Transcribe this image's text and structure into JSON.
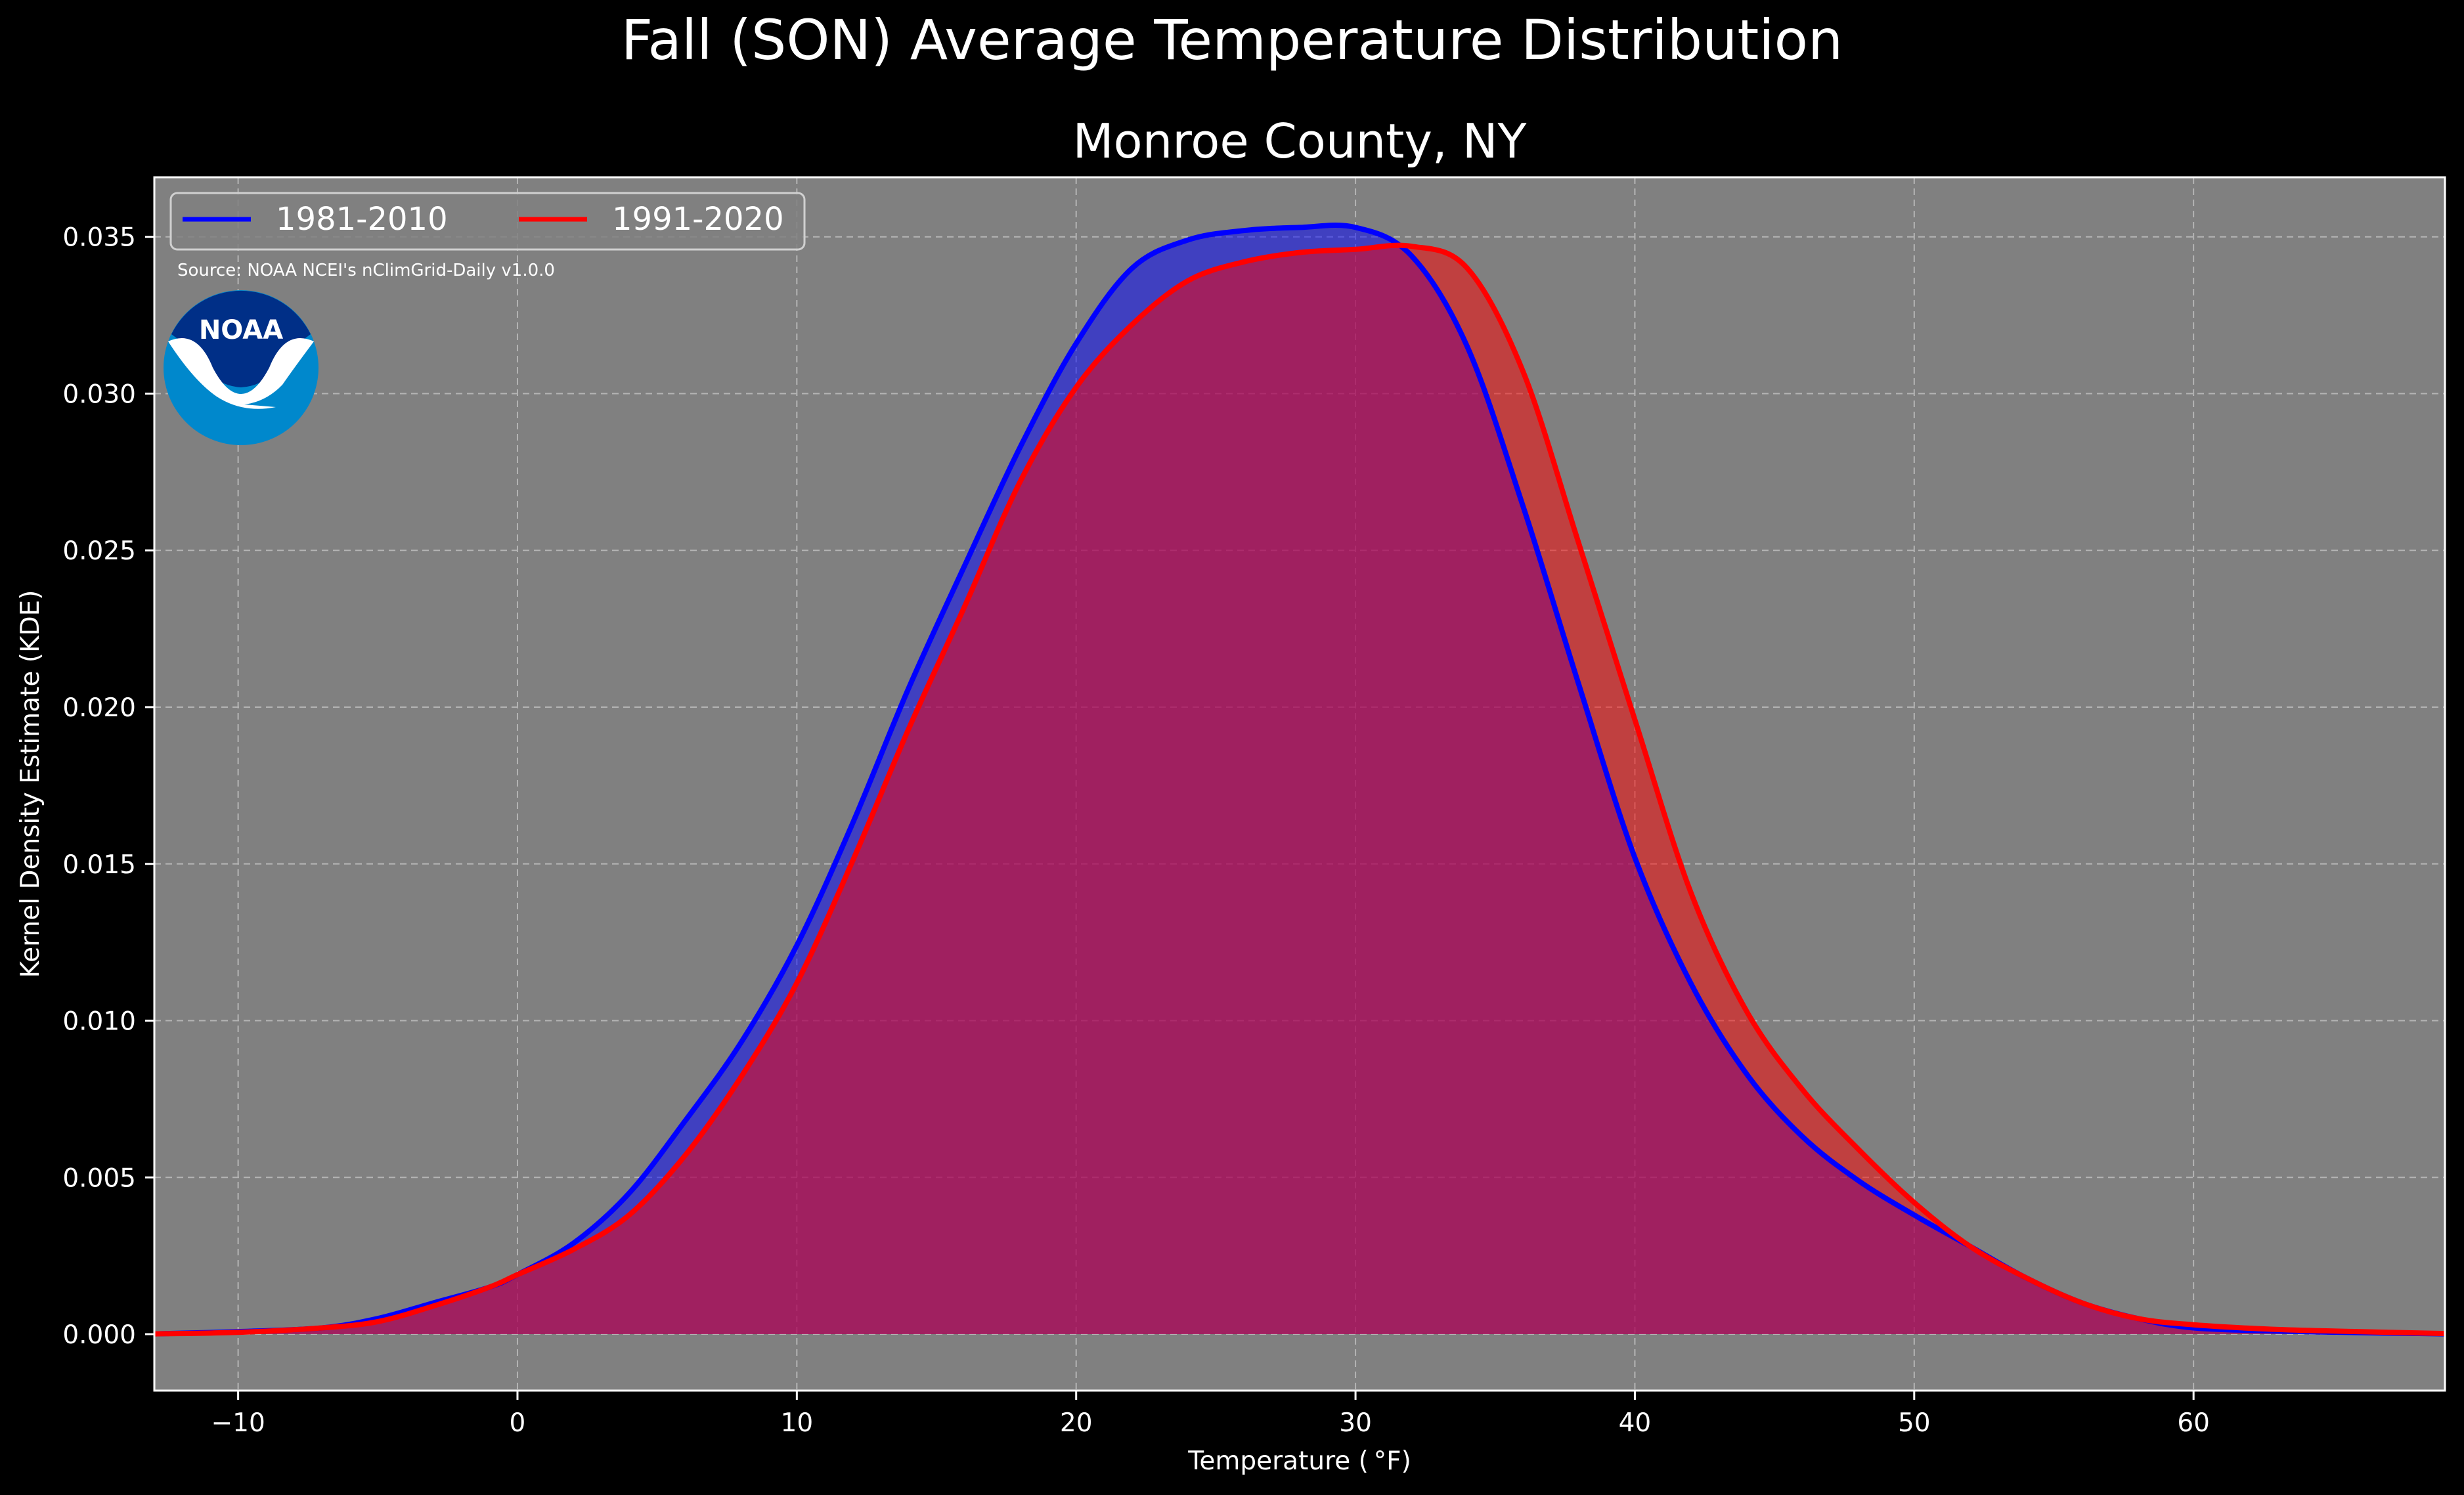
{
  "chart_data": {
    "type": "area",
    "title": "Fall (SON) Average Temperature Distribution",
    "subtitle": "Monroe County, NY",
    "xlabel": "Temperature ( °F)",
    "ylabel": "Kernel Density Estimate (KDE)",
    "xlim": [
      -13,
      69
    ],
    "ylim": [
      -0.0018,
      0.0369
    ],
    "xticks": [
      -10,
      0,
      10,
      20,
      30,
      40,
      50,
      60
    ],
    "xtick_labels": [
      "−10",
      "0",
      "10",
      "20",
      "30",
      "40",
      "50",
      "60"
    ],
    "yticks": [
      0.0,
      0.005,
      0.01,
      0.015,
      0.02,
      0.025,
      0.03,
      0.035
    ],
    "ytick_labels": [
      "0.000",
      "0.005",
      "0.010",
      "0.015",
      "0.020",
      "0.025",
      "0.030",
      "0.035"
    ],
    "grid": true,
    "legend_position": "top-left",
    "source_note": "Source: NOAA NCEI's nClimGrid-Daily v1.0.0",
    "logo_text": "NOAA",
    "series": [
      {
        "name": "1981-2010",
        "color": "#0000ff",
        "x": [
          -13,
          -10,
          -7,
          -5,
          -3,
          -1,
          0,
          2,
          4,
          6,
          8,
          10,
          12,
          14,
          16,
          18,
          20,
          22,
          24,
          26,
          28,
          30,
          32,
          34,
          36,
          38,
          40,
          42,
          44,
          46,
          48,
          50,
          52,
          54,
          56,
          58,
          60,
          63,
          66,
          69
        ],
        "y": [
          1e-05,
          8e-05,
          0.0002,
          0.0005,
          0.001,
          0.0015,
          0.0019,
          0.0029,
          0.0045,
          0.0068,
          0.0093,
          0.0124,
          0.0163,
          0.0206,
          0.0245,
          0.0283,
          0.0316,
          0.034,
          0.0349,
          0.0352,
          0.0353,
          0.0353,
          0.0344,
          0.0315,
          0.0264,
          0.0207,
          0.0152,
          0.0112,
          0.0083,
          0.0063,
          0.0049,
          0.0038,
          0.0028,
          0.0018,
          0.001,
          0.0005,
          0.0002,
          0.0001,
          5e-05,
          1e-05
        ]
      },
      {
        "name": "1991-2020",
        "color": "#ff0000",
        "x": [
          -13,
          -10,
          -7,
          -5,
          -3,
          -1,
          0,
          2,
          4,
          6,
          8,
          10,
          12,
          14,
          16,
          18,
          20,
          22,
          24,
          26,
          28,
          30,
          32,
          34,
          36,
          38,
          40,
          42,
          44,
          46,
          48,
          50,
          52,
          54,
          56,
          58,
          60,
          63,
          66,
          69
        ],
        "y": [
          1e-05,
          6e-05,
          0.0002,
          0.0004,
          0.0009,
          0.0015,
          0.0019,
          0.0027,
          0.0038,
          0.0057,
          0.0082,
          0.0112,
          0.0151,
          0.0193,
          0.0232,
          0.0272,
          0.0302,
          0.0322,
          0.0336,
          0.0342,
          0.0345,
          0.0346,
          0.0347,
          0.034,
          0.0307,
          0.0252,
          0.0196,
          0.0141,
          0.0103,
          0.0078,
          0.0059,
          0.0042,
          0.0028,
          0.0018,
          0.001,
          0.0005,
          0.0003,
          0.00015,
          8e-05,
          2e-05
        ]
      }
    ]
  }
}
